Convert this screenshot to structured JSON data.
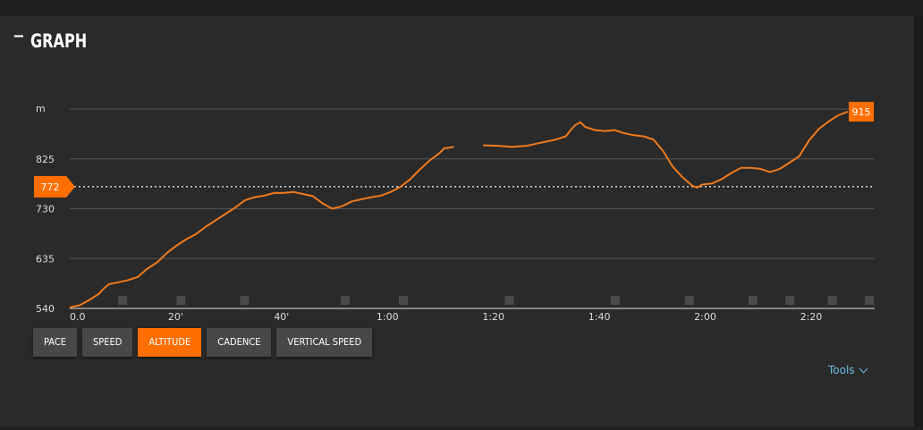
{
  "header": {
    "collapse_icon": "−",
    "title": "GRAPH"
  },
  "buttons": [
    {
      "label": "PACE",
      "active": false
    },
    {
      "label": "SPEED",
      "active": false
    },
    {
      "label": "ALTITUDE",
      "active": true
    },
    {
      "label": "CADENCE",
      "active": false
    },
    {
      "label": "VERTICAL SPEED",
      "active": false
    }
  ],
  "tools": {
    "label": "Tools",
    "icon": "chevron-down-icon"
  },
  "colors": {
    "accent": "#ff6e00",
    "line": "#f07a1c",
    "grid": "#555555",
    "text": "#dddddd",
    "link": "#67c0e6"
  },
  "chart_data": {
    "type": "line",
    "title": "",
    "xlabel": "",
    "ylabel": "m",
    "x_unit": "minutes",
    "xlim": [
      0,
      152
    ],
    "ylim": [
      540,
      920
    ],
    "y_ticks": [
      540,
      635,
      730,
      825
    ],
    "y_tick_labels": [
      "540",
      "635",
      "730",
      "825"
    ],
    "y_unit_label": "m",
    "x_ticks": [
      0,
      20,
      40,
      60,
      80,
      100,
      120,
      140
    ],
    "x_tick_labels": [
      "0.0",
      "20'",
      "40'",
      "1:00",
      "1:20",
      "1:40",
      "2:00",
      "2:20"
    ],
    "grid": true,
    "reference_line": {
      "value": 772,
      "label": "772",
      "style": "dotted"
    },
    "end_marker": {
      "value": 915,
      "label": "915"
    },
    "lap_markers_minutes": [
      10,
      21,
      33,
      52,
      63,
      83,
      103,
      117,
      129,
      136,
      144,
      151
    ],
    "series": [
      {
        "segments": [
          [
            [
              0,
              542
            ],
            [
              2,
              546
            ],
            [
              4,
              556
            ],
            [
              6,
              568
            ],
            [
              7,
              578
            ],
            [
              8,
              586
            ],
            [
              10,
              590
            ],
            [
              12,
              594
            ],
            [
              14,
              600
            ],
            [
              16,
              616
            ],
            [
              18,
              628
            ],
            [
              20,
              646
            ],
            [
              22,
              660
            ],
            [
              24,
              672
            ],
            [
              26,
              682
            ],
            [
              28,
              696
            ],
            [
              30,
              708
            ],
            [
              32,
              720
            ],
            [
              34,
              732
            ],
            [
              36,
              746
            ],
            [
              38,
              752
            ],
            [
              40,
              755
            ],
            [
              42,
              760
            ],
            [
              44,
              760
            ],
            [
              46,
              762
            ],
            [
              48,
              758
            ],
            [
              50,
              754
            ],
            [
              52,
              740
            ],
            [
              54,
              730
            ],
            [
              56,
              735
            ],
            [
              58,
              744
            ],
            [
              60,
              748
            ],
            [
              62,
              752
            ],
            [
              64,
              755
            ],
            [
              66,
              762
            ],
            [
              68,
              772
            ],
            [
              70,
              786
            ],
            [
              72,
              805
            ],
            [
              74,
              822
            ],
            [
              76,
              836
            ],
            [
              77,
              845
            ],
            [
              79,
              848
            ]
          ],
          [
            [
              85,
              851
            ],
            [
              88,
              850
            ],
            [
              91,
              848
            ],
            [
              94,
              850
            ],
            [
              96,
              854
            ],
            [
              98,
              858
            ],
            [
              100,
              862
            ],
            [
              102,
              868
            ],
            [
              103,
              880
            ],
            [
              104,
              890
            ],
            [
              105,
              895
            ],
            [
              106,
              886
            ],
            [
              108,
              880
            ],
            [
              110,
              878
            ],
            [
              112,
              880
            ],
            [
              114,
              874
            ],
            [
              116,
              870
            ],
            [
              118,
              868
            ],
            [
              120,
              862
            ],
            [
              122,
              840
            ],
            [
              124,
              810
            ],
            [
              126,
              790
            ],
            [
              128,
              774
            ],
            [
              129,
              770
            ],
            [
              130,
              776
            ],
            [
              132,
              778
            ],
            [
              134,
              786
            ],
            [
              136,
              798
            ],
            [
              138,
              808
            ],
            [
              140,
              808
            ],
            [
              142,
              806
            ],
            [
              144,
              800
            ],
            [
              146,
              806
            ],
            [
              148,
              818
            ],
            [
              150,
              830
            ],
            [
              152,
              860
            ],
            [
              154,
              882
            ],
            [
              156,
              896
            ],
            [
              158,
              908
            ],
            [
              160,
              915
            ]
          ]
        ]
      }
    ]
  }
}
